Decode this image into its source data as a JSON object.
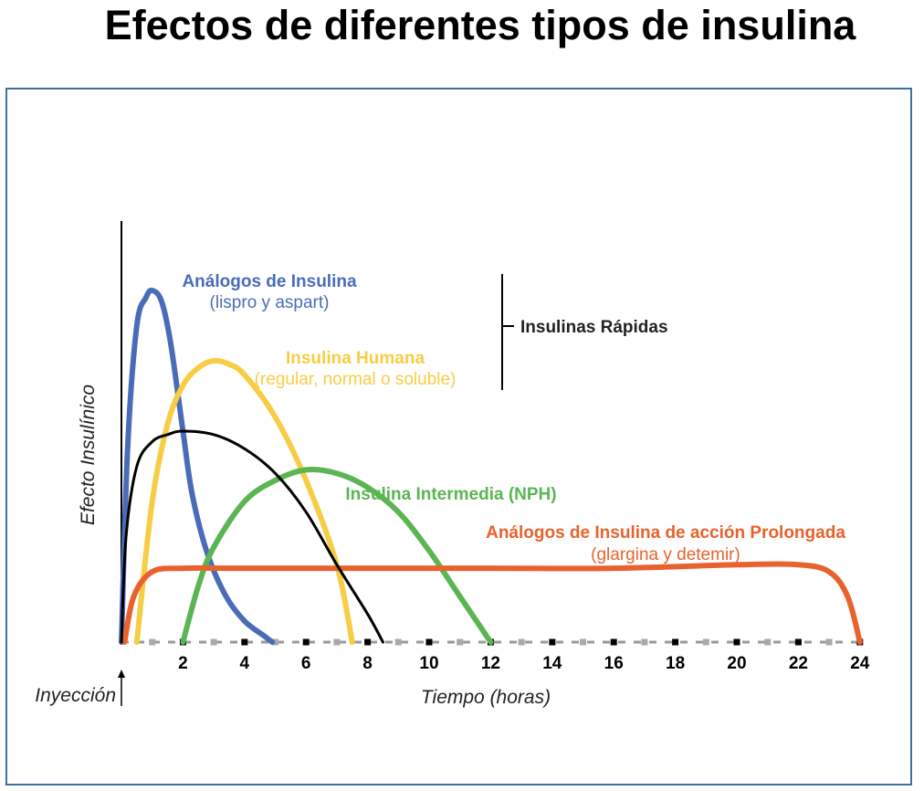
{
  "page": {
    "title": "Efectos de diferentes tipos de insulina"
  },
  "chart_data": {
    "type": "line",
    "title": "Efectos de diferentes tipos de insulina",
    "xlabel": "Tiempo (horas)",
    "ylabel": "Efecto Insulínico",
    "xlim": [
      0,
      24
    ],
    "ylim": [
      0,
      1
    ],
    "x_ticks": [
      2,
      4,
      6,
      8,
      10,
      12,
      14,
      16,
      18,
      20,
      22,
      24
    ],
    "injection_label": "Inyección",
    "group_label": "Insulinas Rápidas",
    "grid": false,
    "series": [
      {
        "name": "Análogos de Insulina",
        "subtitle": "(lispro y aspart)",
        "color": "#4a6cb8",
        "x": [
          0,
          0.2,
          0.5,
          0.8,
          1.0,
          1.3,
          1.6,
          2.0,
          2.3,
          2.8,
          3.4,
          4.0,
          4.6,
          4.9
        ],
        "y": [
          0,
          0.55,
          0.9,
          0.98,
          1.0,
          0.97,
          0.85,
          0.6,
          0.42,
          0.25,
          0.13,
          0.06,
          0.02,
          0
        ]
      },
      {
        "name": "Insulina Humana",
        "subtitle": "(regular, normal o soluble)",
        "color": "#f7cd45",
        "x": [
          0.5,
          1.0,
          1.5,
          2.0,
          2.5,
          3.0,
          3.5,
          4.0,
          5.0,
          6.0,
          7.0,
          7.5
        ],
        "y": [
          0,
          0.4,
          0.62,
          0.73,
          0.78,
          0.8,
          0.79,
          0.76,
          0.64,
          0.46,
          0.22,
          0
        ]
      },
      {
        "name": "Insulina Intermedia (NPH)",
        "subtitle": "",
        "color": "#5bb553",
        "x": [
          2,
          2.5,
          3,
          4,
          5,
          6,
          7,
          8,
          9,
          10,
          11,
          12
        ],
        "y": [
          0,
          0.16,
          0.27,
          0.4,
          0.46,
          0.49,
          0.48,
          0.44,
          0.37,
          0.26,
          0.13,
          0
        ]
      },
      {
        "name": "Análogos de Insulina de acción Prolongada",
        "subtitle": "(glargina y detemir)",
        "color": "#e9622d",
        "x": [
          0.1,
          0.4,
          1,
          2,
          4,
          8,
          12,
          16,
          20,
          22,
          23,
          23.6,
          24
        ],
        "y": [
          0,
          0.13,
          0.2,
          0.21,
          0.21,
          0.21,
          0.21,
          0.21,
          0.22,
          0.22,
          0.2,
          0.13,
          0
        ]
      },
      {
        "name": "",
        "subtitle": "",
        "color": "#000000",
        "x": [
          0,
          0.15,
          0.5,
          1.0,
          1.5,
          2.0,
          3.0,
          4.0,
          5.0,
          6.0,
          7.0,
          8.0,
          8.5
        ],
        "y": [
          0,
          0.3,
          0.5,
          0.57,
          0.59,
          0.6,
          0.59,
          0.55,
          0.48,
          0.37,
          0.22,
          0.08,
          0
        ]
      }
    ]
  }
}
